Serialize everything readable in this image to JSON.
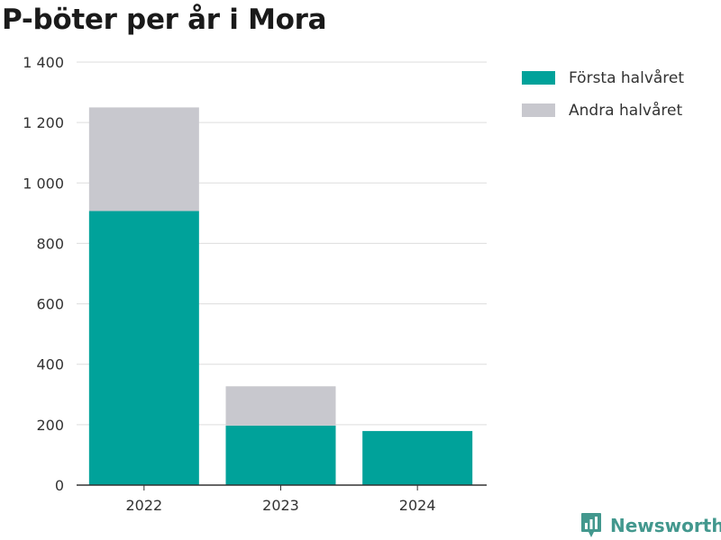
{
  "title": "P-böter per år i Mora",
  "brand": {
    "name": "Newsworthy",
    "color": "#43988e"
  },
  "colors": {
    "first_half": "#00a29a",
    "second_half": "#c8c8ce",
    "grid": "#dddddd",
    "axis": "#333333"
  },
  "legend": [
    {
      "label": "Första halvåret",
      "color": "#00a29a"
    },
    {
      "label": "Andra halvåret",
      "color": "#c8c8ce"
    }
  ],
  "chart_data": {
    "type": "bar",
    "stacked": true,
    "categories": [
      "2022",
      "2023",
      "2024"
    ],
    "series": [
      {
        "name": "Första halvåret",
        "values": [
          907,
          197,
          179
        ]
      },
      {
        "name": "Andra halvåret",
        "values": [
          343,
          130,
          0
        ]
      }
    ],
    "ylim": [
      0,
      1400
    ],
    "yticks": [
      0,
      200,
      400,
      600,
      800,
      1000,
      1200,
      1400
    ],
    "ytick_labels": [
      "0",
      "200",
      "400",
      "600",
      "800",
      "1 000",
      "1 200",
      "1 400"
    ],
    "grid": true,
    "legend_position": "top-right"
  }
}
